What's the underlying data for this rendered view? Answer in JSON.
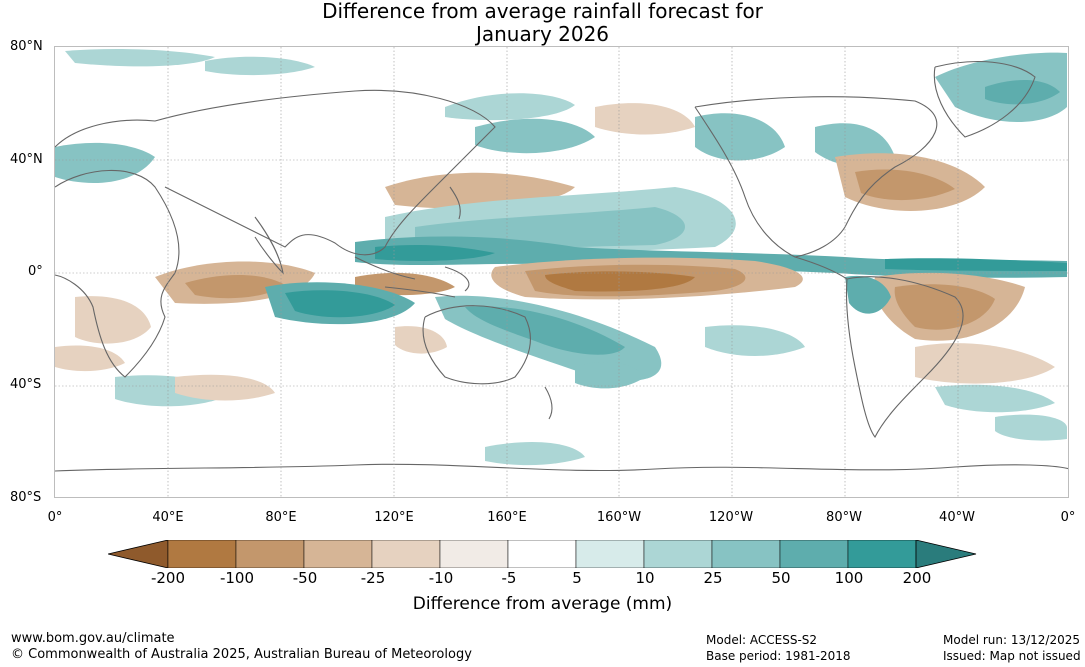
{
  "title": {
    "line1": "Difference from average rainfall forecast for",
    "line2": "January 2026"
  },
  "map": {
    "lat_labels": [
      "80°N",
      "40°N",
      "0°",
      "40°S",
      "80°S"
    ],
    "lon_labels": [
      "0°",
      "40°E",
      "80°E",
      "120°E",
      "160°E",
      "160°W",
      "120°W",
      "80°W",
      "40°W",
      "0°"
    ]
  },
  "colorbar": {
    "ticks": [
      "-200",
      "-100",
      "-50",
      "-25",
      "-10",
      "-5",
      "5",
      "10",
      "25",
      "50",
      "100",
      "200"
    ],
    "colors": {
      "below_-200": "#8f5a2c",
      "-200_-100": "#b07941",
      "-100_-50": "#c3976c",
      "-50_-25": "#d6b596",
      "-25_-10": "#e6d2c0",
      "-10_-5": "#f1ebe6",
      "-5_5": "#ffffff",
      "5_10": "#d7ebea",
      "10_25": "#acd6d5",
      "25_50": "#87c3c3",
      "50_100": "#5eadad",
      "100_200": "#339b99",
      "above_200": "#2a7c7c"
    },
    "title": "Difference from average (mm)"
  },
  "footer": {
    "url": "www.bom.gov.au/climate",
    "copyright": "© Commonwealth of Australia 2025, Australian Bureau of Meteorology",
    "model": "Model: ACCESS-S2",
    "base_period": "Base period: 1981-2018",
    "model_run": "Model run: 13/12/2025",
    "issued": "Issued: Map not issued"
  }
}
